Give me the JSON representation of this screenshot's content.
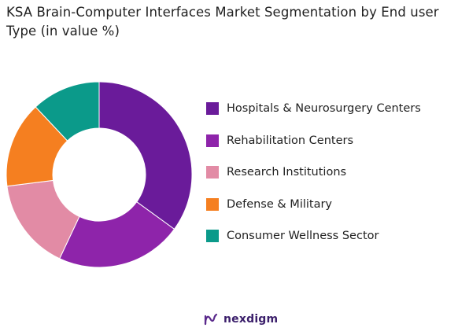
{
  "chart_data": {
    "type": "pie",
    "donut": true,
    "title": "KSA Brain-Computer Interfaces Market Segmentation by End user Type (in value %)",
    "categories": [
      "Hospitals & Neurosurgery Centers",
      "Rehabilitation Centers",
      "Research Institutions",
      "Defense & Military",
      "Consumer Wellness Sector"
    ],
    "values": [
      35,
      22,
      16,
      15,
      12
    ],
    "colors": [
      "#6a1b9a",
      "#8e24aa",
      "#e28ba5",
      "#f57f20",
      "#0b9a8a"
    ],
    "legend_position": "right"
  },
  "branding": {
    "logo_text": "nexdigm"
  }
}
